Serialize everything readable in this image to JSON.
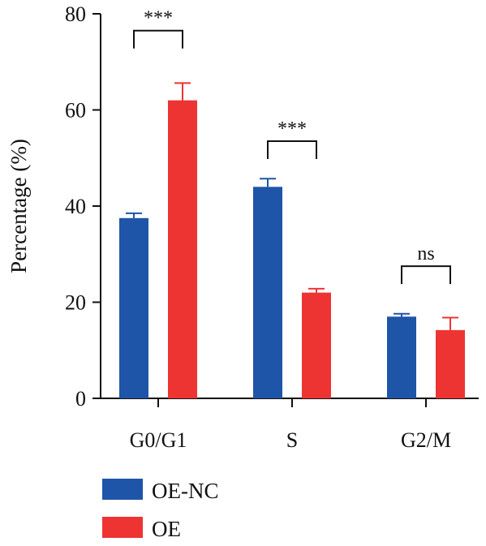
{
  "chart_data": {
    "type": "bar",
    "ylabel": "Percentage (%)",
    "xlabel": "",
    "ylim": [
      0,
      80
    ],
    "yticks": [
      0,
      20,
      40,
      60,
      80
    ],
    "categories": [
      "G0/G1",
      "S",
      "G2/M"
    ],
    "series": [
      {
        "name": "OE-NC",
        "color": "#1f55a8",
        "values": [
          37.5,
          44.0,
          17.0
        ],
        "errors": [
          1.0,
          1.7,
          0.6
        ]
      },
      {
        "name": "OE",
        "color": "#ee3333",
        "values": [
          62.0,
          22.0,
          14.2
        ],
        "errors": [
          3.6,
          0.8,
          2.6
        ]
      }
    ],
    "significance": [
      {
        "category": "G0/G1",
        "label": "***",
        "bracket_y": 76.5
      },
      {
        "category": "S",
        "label": "***",
        "bracket_y": 53.5
      },
      {
        "category": "G2/M",
        "label": "ns",
        "bracket_y": 27.5
      }
    ],
    "legend_position": "bottom-left"
  }
}
